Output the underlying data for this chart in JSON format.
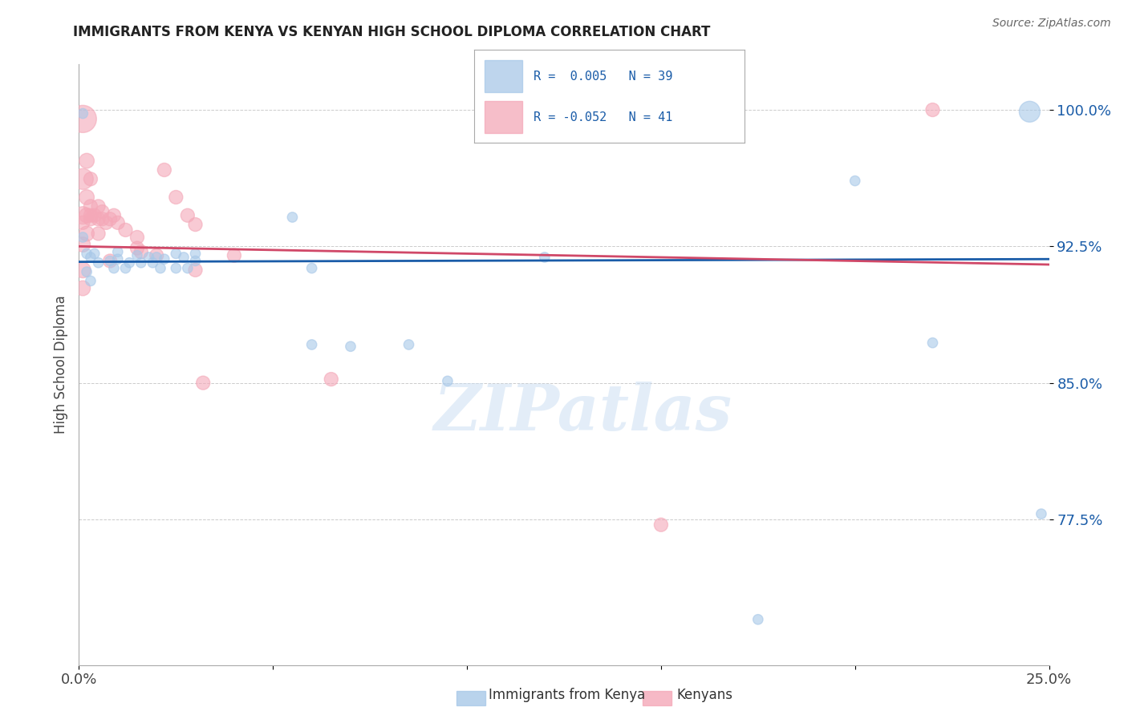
{
  "title": "IMMIGRANTS FROM KENYA VS KENYAN HIGH SCHOOL DIPLOMA CORRELATION CHART",
  "source": "Source: ZipAtlas.com",
  "ylabel": "High School Diploma",
  "watermark": "ZIPatlas",
  "blue_color": "#a8c8e8",
  "pink_color": "#f4a8b8",
  "blue_line_color": "#1a5ca8",
  "pink_line_color": "#d04868",
  "blue_r": " 0.005",
  "blue_n": "39",
  "pink_r": "-0.052",
  "pink_n": "41",
  "xlim": [
    0.0,
    0.25
  ],
  "ylim": [
    0.695,
    1.025
  ],
  "ytick_vals": [
    0.775,
    0.85,
    0.925,
    1.0
  ],
  "ytick_labels": [
    "77.5%",
    "85.0%",
    "92.5%",
    "100.0%"
  ],
  "blue_line": {
    "x0": 0.0,
    "y0": 0.9165,
    "x1": 0.25,
    "y1": 0.918
  },
  "pink_line": {
    "x0": 0.0,
    "y0": 0.925,
    "x1": 0.25,
    "y1": 0.915
  },
  "blue_scatter": [
    [
      0.001,
      0.998
    ],
    [
      0.002,
      0.921
    ],
    [
      0.003,
      0.919
    ],
    [
      0.004,
      0.921
    ],
    [
      0.005,
      0.916
    ],
    [
      0.002,
      0.911
    ],
    [
      0.001,
      0.93
    ],
    [
      0.003,
      0.906
    ],
    [
      0.008,
      0.917
    ],
    [
      0.009,
      0.913
    ],
    [
      0.01,
      0.918
    ],
    [
      0.01,
      0.922
    ],
    [
      0.012,
      0.913
    ],
    [
      0.013,
      0.916
    ],
    [
      0.015,
      0.92
    ],
    [
      0.016,
      0.916
    ],
    [
      0.018,
      0.919
    ],
    [
      0.019,
      0.916
    ],
    [
      0.02,
      0.919
    ],
    [
      0.021,
      0.913
    ],
    [
      0.022,
      0.918
    ],
    [
      0.025,
      0.913
    ],
    [
      0.025,
      0.921
    ],
    [
      0.027,
      0.919
    ],
    [
      0.028,
      0.913
    ],
    [
      0.03,
      0.917
    ],
    [
      0.03,
      0.921
    ],
    [
      0.055,
      0.941
    ],
    [
      0.06,
      0.913
    ],
    [
      0.07,
      0.87
    ],
    [
      0.085,
      0.871
    ],
    [
      0.095,
      0.851
    ],
    [
      0.12,
      0.919
    ],
    [
      0.2,
      0.961
    ],
    [
      0.22,
      0.872
    ],
    [
      0.245,
      0.999
    ],
    [
      0.248,
      0.778
    ],
    [
      0.175,
      0.72
    ],
    [
      0.06,
      0.871
    ]
  ],
  "blue_sizes": [
    80,
    80,
    80,
    80,
    80,
    80,
    80,
    80,
    80,
    80,
    80,
    80,
    80,
    80,
    80,
    80,
    80,
    80,
    80,
    80,
    80,
    80,
    80,
    80,
    80,
    80,
    80,
    80,
    80,
    80,
    80,
    80,
    80,
    80,
    80,
    350,
    80,
    80,
    80
  ],
  "pink_scatter": [
    [
      0.001,
      0.995
    ],
    [
      0.001,
      0.962
    ],
    [
      0.001,
      0.942
    ],
    [
      0.001,
      0.912
    ],
    [
      0.001,
      0.902
    ],
    [
      0.001,
      0.926
    ],
    [
      0.002,
      0.972
    ],
    [
      0.002,
      0.952
    ],
    [
      0.002,
      0.942
    ],
    [
      0.002,
      0.932
    ],
    [
      0.003,
      0.962
    ],
    [
      0.003,
      0.947
    ],
    [
      0.003,
      0.942
    ],
    [
      0.003,
      0.94
    ],
    [
      0.004,
      0.942
    ],
    [
      0.005,
      0.947
    ],
    [
      0.005,
      0.94
    ],
    [
      0.005,
      0.932
    ],
    [
      0.006,
      0.944
    ],
    [
      0.006,
      0.94
    ],
    [
      0.007,
      0.938
    ],
    [
      0.008,
      0.94
    ],
    [
      0.008,
      0.917
    ],
    [
      0.009,
      0.942
    ],
    [
      0.01,
      0.938
    ],
    [
      0.012,
      0.934
    ],
    [
      0.015,
      0.93
    ],
    [
      0.015,
      0.924
    ],
    [
      0.016,
      0.922
    ],
    [
      0.02,
      0.92
    ],
    [
      0.022,
      0.967
    ],
    [
      0.025,
      0.952
    ],
    [
      0.028,
      0.942
    ],
    [
      0.03,
      0.937
    ],
    [
      0.032,
      0.85
    ],
    [
      0.04,
      0.92
    ],
    [
      0.065,
      0.852
    ],
    [
      0.15,
      0.772
    ],
    [
      0.22,
      1.0
    ],
    [
      0.001,
      0.938
    ],
    [
      0.03,
      0.912
    ]
  ],
  "pink_sizes": [
    600,
    350,
    250,
    200,
    180,
    180,
    180,
    180,
    180,
    180,
    150,
    150,
    150,
    150,
    150,
    150,
    150,
    150,
    150,
    150,
    150,
    150,
    150,
    150,
    150,
    150,
    150,
    150,
    150,
    150,
    150,
    150,
    150,
    150,
    150,
    150,
    150,
    150,
    150,
    150,
    150
  ]
}
